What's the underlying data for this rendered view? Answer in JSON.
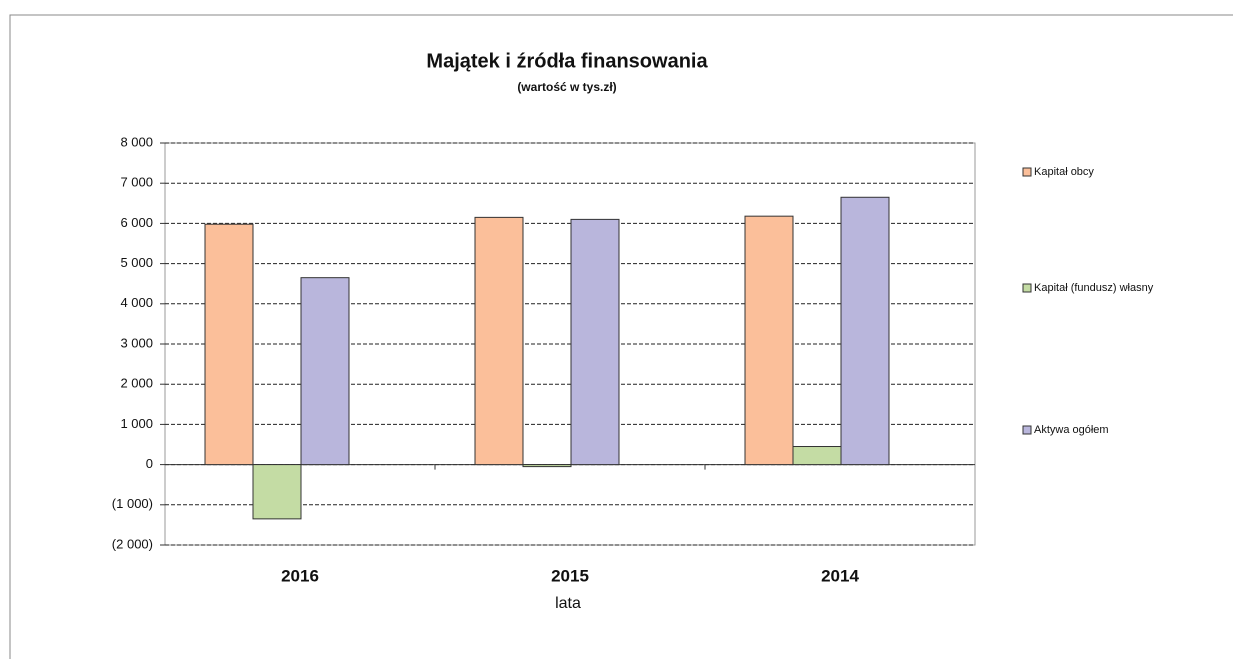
{
  "chart_data": {
    "type": "bar",
    "title": "Majątek i źródła finansowania",
    "subtitle": "(wartość w tys.zł)",
    "x_label": "lata",
    "categories": [
      "2016",
      "2015",
      "2014"
    ],
    "series": [
      {
        "name": "Kapitał obcy",
        "color": "#fbbf9a",
        "values": [
          5980,
          6150,
          6180
        ]
      },
      {
        "name": "Kapitał (fundusz) własny",
        "color": "#c4dca4",
        "values": [
          -1350,
          -50,
          450
        ]
      },
      {
        "name": "Aktywa ogółem",
        "color": "#b9b6dc",
        "values": [
          4650,
          6100,
          6650
        ]
      }
    ],
    "ylim": [
      -2000,
      8000
    ],
    "yticks": [
      {
        "value": -2000,
        "label": "(2 000)"
      },
      {
        "value": -1000,
        "label": "(1 000)"
      },
      0,
      {
        "value": 1000,
        "label": "1 000"
      },
      {
        "value": 2000,
        "label": "2 000"
      },
      {
        "value": 3000,
        "label": "3 000"
      },
      {
        "value": 4000,
        "label": "4 000"
      },
      {
        "value": 5000,
        "label": "5 000"
      },
      {
        "value": 6000,
        "label": "6 000"
      },
      {
        "value": 7000,
        "label": "7 000"
      },
      {
        "value": 8000,
        "label": "8 000"
      }
    ],
    "grid": true,
    "legend": "right"
  }
}
